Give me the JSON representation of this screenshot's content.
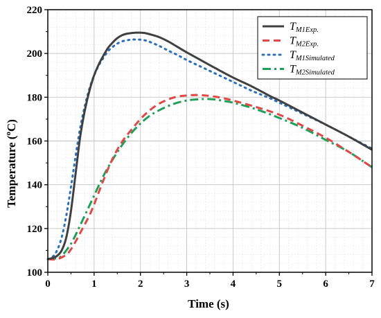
{
  "chart_data": {
    "type": "line",
    "xlabel": "Time (s)",
    "ylabel_main": "Temperature (",
    "ylabel_sup": "o",
    "ylabel_tail": "C)",
    "xlim": [
      0,
      7
    ],
    "ylim": [
      100,
      220
    ],
    "xticks": [
      "0",
      "1",
      "2",
      "3",
      "4",
      "5",
      "6",
      "7"
    ],
    "yticks": [
      "100",
      "120",
      "140",
      "160",
      "180",
      "200",
      "220"
    ],
    "grid": "major and minor",
    "legend_position": "top-right",
    "series": [
      {
        "name_main": "T",
        "name_sub": "M1Exp.",
        "color": "#404040",
        "dash": "solid",
        "x": [
          0,
          0.1,
          0.2,
          0.3,
          0.4,
          0.5,
          0.6,
          0.7,
          0.8,
          0.9,
          1.0,
          1.1,
          1.2,
          1.3,
          1.4,
          1.5,
          1.6,
          1.7,
          1.8,
          1.9,
          2.0,
          2.1,
          2.2,
          2.4,
          2.6,
          2.8,
          3.0,
          3.3,
          3.6,
          4.0,
          4.4,
          4.8,
          5.0,
          5.5,
          6.0,
          6.5,
          7.0
        ],
        "y": [
          106,
          106.5,
          107.5,
          110,
          116,
          128,
          145,
          162,
          174,
          183,
          190,
          195,
          199,
          202.5,
          205,
          207,
          208.3,
          209,
          209.3,
          209.5,
          209.5,
          209.3,
          208.8,
          207.5,
          205.5,
          203,
          200.5,
          197,
          193.5,
          189,
          185,
          180.5,
          178.5,
          173,
          167.5,
          162,
          156
        ]
      },
      {
        "name_main": "T",
        "name_sub": "M2Exp.",
        "color": "#e04848",
        "dash": "10 6",
        "x": [
          0,
          0.2,
          0.4,
          0.5,
          0.6,
          0.7,
          0.8,
          0.9,
          1.0,
          1.2,
          1.4,
          1.6,
          1.8,
          2.0,
          2.2,
          2.4,
          2.6,
          2.8,
          3.0,
          3.2,
          3.4,
          3.6,
          3.8,
          4.0,
          4.5,
          5.0,
          5.5,
          6.0,
          6.5,
          7.0
        ],
        "y": [
          106,
          106,
          108,
          110.5,
          114,
          118,
          122,
          126,
          131,
          142,
          152,
          159.5,
          165,
          170,
          174,
          177,
          179,
          180.3,
          180.8,
          181,
          180.8,
          180.3,
          179.5,
          178.5,
          175.5,
          172,
          167,
          161.5,
          155,
          148
        ]
      },
      {
        "name_main": "T",
        "name_sub": "M1Simulated",
        "color": "#2a6fba",
        "dash": "2 6",
        "x": [
          0,
          0.1,
          0.2,
          0.3,
          0.4,
          0.5,
          0.6,
          0.7,
          0.8,
          0.9,
          1.0,
          1.1,
          1.2,
          1.3,
          1.4,
          1.5,
          1.6,
          1.7,
          1.8,
          1.9,
          2.0,
          2.1,
          2.2,
          2.4,
          2.6,
          2.8,
          3.0,
          3.3,
          3.6,
          4.0,
          4.4,
          4.8,
          5.0,
          5.5,
          6.0,
          6.5,
          7.0
        ],
        "y": [
          106,
          107,
          110,
          116,
          126,
          139,
          153,
          166,
          176,
          184,
          190,
          194.5,
          198,
          201,
          203,
          204.5,
          205.5,
          206,
          206.3,
          206.4,
          206.3,
          206,
          205.3,
          203.5,
          201.3,
          199.3,
          197,
          194,
          191,
          187,
          183,
          179.5,
          177.5,
          172.5,
          167.5,
          162,
          156.5
        ]
      },
      {
        "name_main": "T",
        "name_sub": "M2Simulated",
        "color": "#1fa05a",
        "dash": "12 5 3 5",
        "x": [
          0,
          0.2,
          0.3,
          0.4,
          0.5,
          0.6,
          0.7,
          0.8,
          0.9,
          1.0,
          1.2,
          1.4,
          1.6,
          1.8,
          2.0,
          2.2,
          2.4,
          2.6,
          2.8,
          3.0,
          3.2,
          3.4,
          3.6,
          3.8,
          4.0,
          4.5,
          5.0,
          5.5,
          6.0,
          6.5,
          7.0
        ],
        "y": [
          106,
          106.5,
          107.5,
          110,
          113,
          117,
          121.5,
          126,
          130.5,
          135,
          144,
          151.5,
          158,
          163.5,
          168,
          171.5,
          174,
          176,
          177.5,
          178.5,
          179,
          179.2,
          179,
          178.3,
          177.5,
          174.5,
          170.5,
          166,
          160.5,
          155,
          148
        ]
      }
    ]
  }
}
